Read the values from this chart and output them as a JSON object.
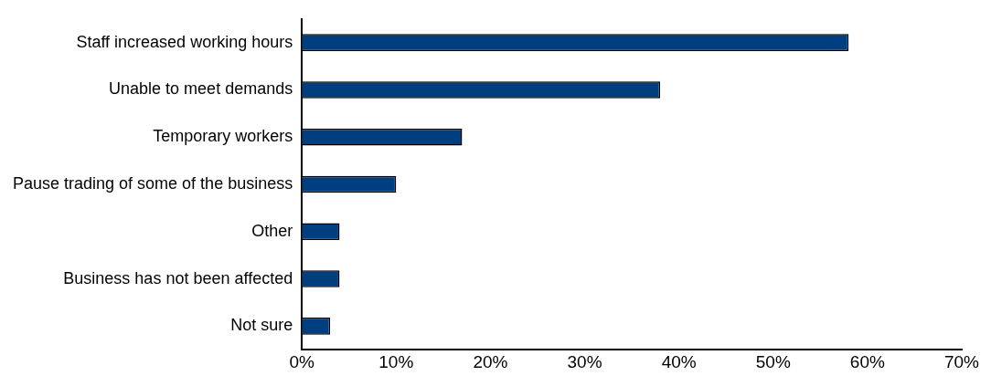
{
  "chart_data": {
    "type": "bar",
    "orientation": "horizontal",
    "categories": [
      "Staff increased working hours",
      "Unable to meet demands",
      "Temporary workers",
      "Pause trading of some of the business",
      "Other",
      "Business has not been affected",
      "Not sure"
    ],
    "values": [
      58,
      38,
      17,
      10,
      4,
      4,
      3
    ],
    "color": "#003f7f",
    "xlim": [
      0,
      70
    ],
    "xticks": [
      {
        "value": 0,
        "label": "0%"
      },
      {
        "value": 10,
        "label": "10%"
      },
      {
        "value": 20,
        "label": "20%"
      },
      {
        "value": 30,
        "label": "30%"
      },
      {
        "value": 40,
        "label": "40%"
      },
      {
        "value": 50,
        "label": "50%"
      },
      {
        "value": 60,
        "label": "60%"
      },
      {
        "value": 70,
        "label": "70%"
      }
    ],
    "grid": false,
    "legend": false
  }
}
